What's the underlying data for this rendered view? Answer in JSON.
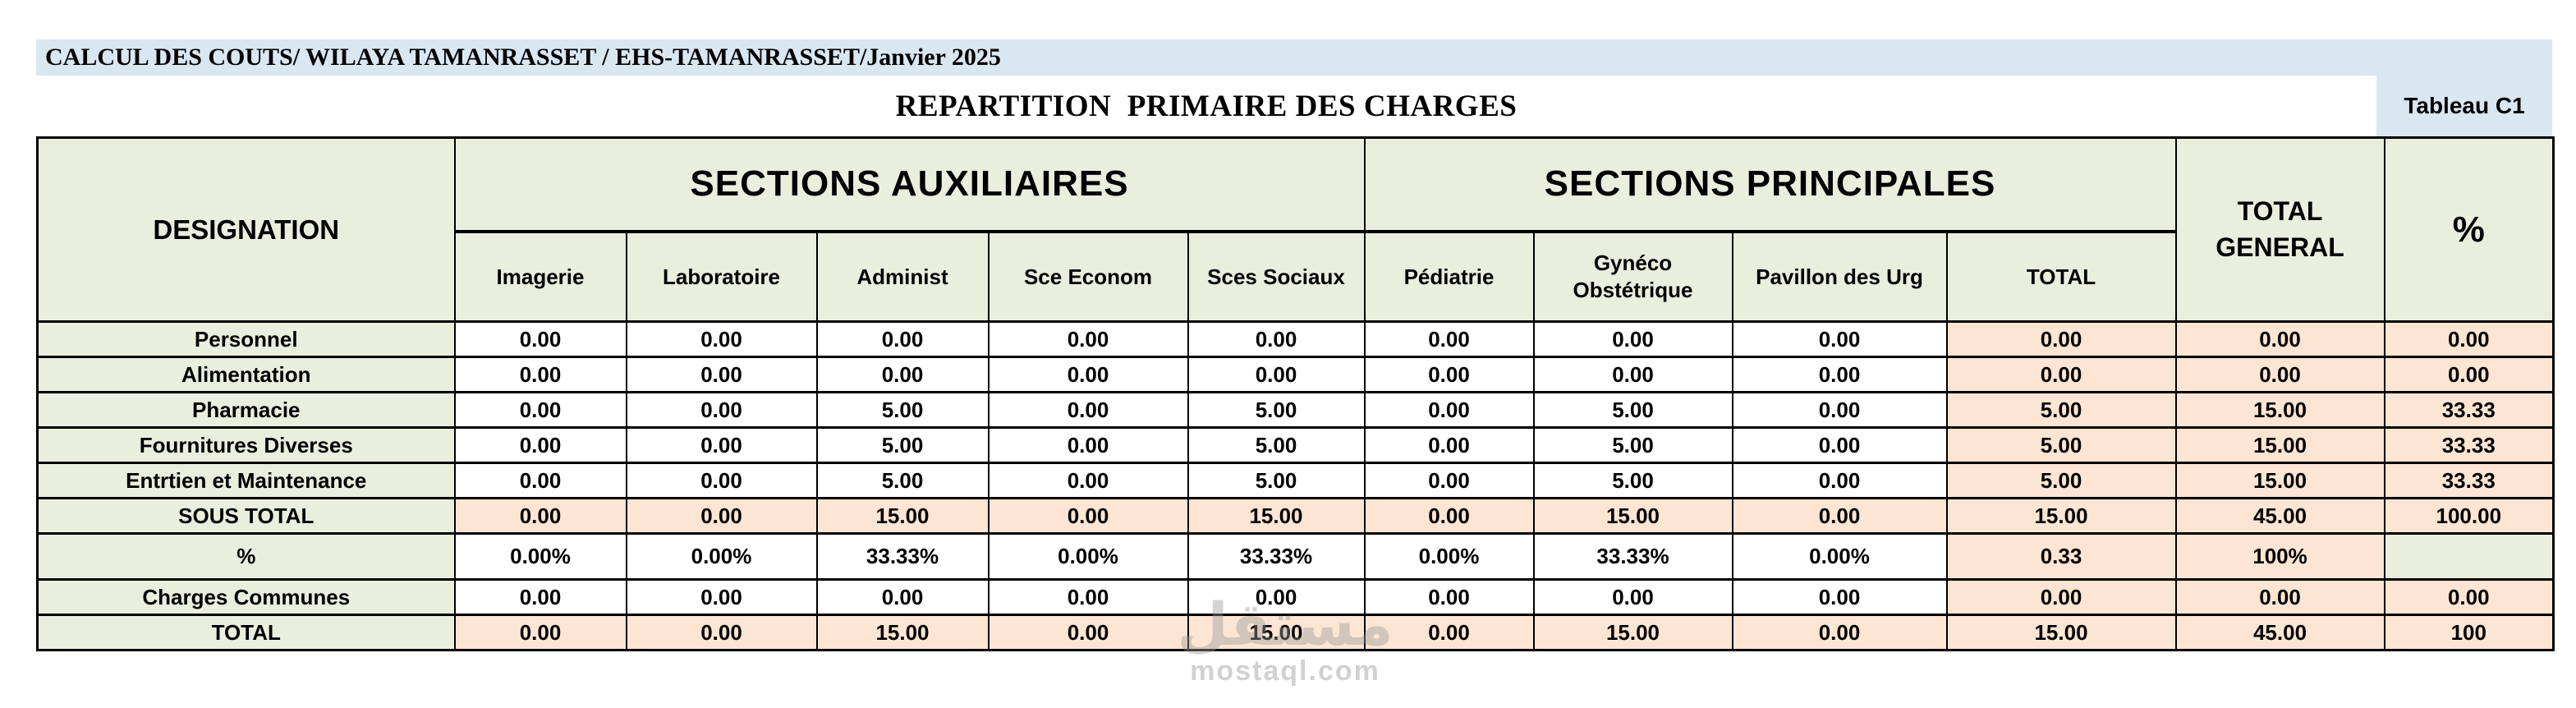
{
  "header": {
    "banner": "CALCUL DES COUTS/ WILAYA TAMANRASSET  / EHS-TAMANRASSET/Janvier 2025",
    "title": "REPARTITION  PRIMAIRE DES CHARGES",
    "table_label": "Tableau C1"
  },
  "table": {
    "designation_header": "DESIGNATION",
    "groups": [
      {
        "label": "SECTIONS AUXILIAIRES"
      },
      {
        "label": "SECTIONS PRINCIPALES"
      }
    ],
    "total_general_header": "TOTAL GENERAL",
    "percent_header": "%",
    "columns": [
      "Imagerie",
      "Laboratoire",
      "Administ",
      "Sce Econom",
      "Sces Sociaux",
      "Pédiatrie",
      "Gynéco Obstétrique",
      "Pavillon des Urg",
      "TOTAL"
    ],
    "rows": [
      {
        "label": "Personnel",
        "variant": "plain",
        "values": [
          "0.00",
          "0.00",
          "0.00",
          "0.00",
          "0.00",
          "0.00",
          "0.00",
          "0.00",
          "0.00",
          "0.00",
          "0.00"
        ]
      },
      {
        "label": "Alimentation",
        "variant": "plain",
        "values": [
          "0.00",
          "0.00",
          "0.00",
          "0.00",
          "0.00",
          "0.00",
          "0.00",
          "0.00",
          "0.00",
          "0.00",
          "0.00"
        ]
      },
      {
        "label": "Pharmacie",
        "variant": "plain",
        "values": [
          "0.00",
          "0.00",
          "5.00",
          "0.00",
          "5.00",
          "0.00",
          "5.00",
          "0.00",
          "5.00",
          "15.00",
          "33.33"
        ]
      },
      {
        "label": "Fournitures Diverses",
        "variant": "plain",
        "values": [
          "0.00",
          "0.00",
          "5.00",
          "0.00",
          "5.00",
          "0.00",
          "5.00",
          "0.00",
          "5.00",
          "15.00",
          "33.33"
        ]
      },
      {
        "label": "Entrtien et Maintenance",
        "variant": "plain",
        "values": [
          "0.00",
          "0.00",
          "5.00",
          "0.00",
          "5.00",
          "0.00",
          "5.00",
          "0.00",
          "5.00",
          "15.00",
          "33.33"
        ]
      },
      {
        "label": "SOUS TOTAL",
        "variant": "subtotal",
        "values": [
          "0.00",
          "0.00",
          "15.00",
          "0.00",
          "15.00",
          "0.00",
          "15.00",
          "0.00",
          "15.00",
          "45.00",
          "100.00"
        ]
      },
      {
        "label": "%",
        "variant": "percent",
        "values": [
          "0.00%",
          "0.00%",
          "33.33%",
          "0.00%",
          "33.33%",
          "0.00%",
          "33.33%",
          "0.00%",
          "0.33",
          "100%",
          ""
        ]
      },
      {
        "label": "Charges Communes",
        "variant": "plain",
        "values": [
          "0.00",
          "0.00",
          "0.00",
          "0.00",
          "0.00",
          "0.00",
          "0.00",
          "0.00",
          "0.00",
          "0.00",
          "0.00"
        ]
      },
      {
        "label": "TOTAL",
        "variant": "total",
        "values": [
          "0.00",
          "0.00",
          "15.00",
          "0.00",
          "15.00",
          "0.00",
          "15.00",
          "0.00",
          "15.00",
          "45.00",
          "100"
        ]
      }
    ]
  },
  "watermark": {
    "logo": "مستقل",
    "domain": "mostaql.com"
  },
  "colors": {
    "band_blue": "#d9e7f1",
    "header_green": "#eaeedd",
    "accent_peach": "#fce5d3",
    "border": "#000000"
  }
}
